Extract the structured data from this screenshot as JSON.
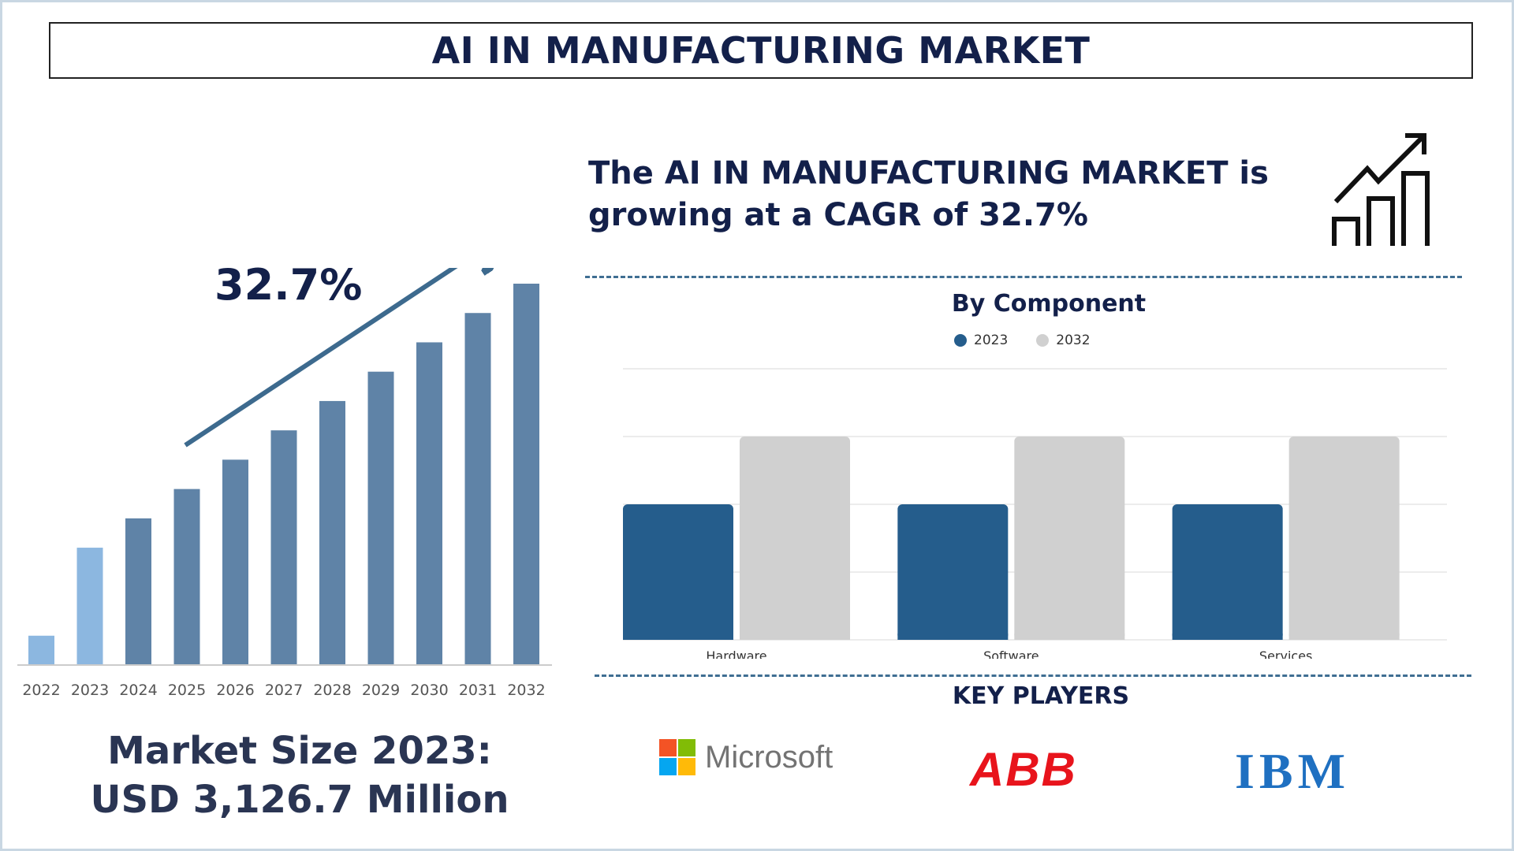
{
  "header": {
    "title": "AI IN MANUFACTURING MARKET"
  },
  "cagr_label": "32.7%",
  "headline": {
    "line1": "The AI IN MANUFACTURING MARKET is",
    "line2": "growing at a CAGR of 32.7%"
  },
  "market_size": {
    "line1": "Market Size 2023:",
    "line2": "USD 3,126.7 Million"
  },
  "component_title": "By Component",
  "key_players_title": "KEY PLAYERS",
  "key_players": [
    "Microsoft",
    "ABB",
    "IBM"
  ],
  "icons": {
    "growth": "bar-chart-growth-icon"
  },
  "colors": {
    "bar_dark": "#5f83a7",
    "bar_light": "#8cb7e0",
    "arrow": "#3d6a8e",
    "series_2023": "#255d8c",
    "series_2032": "#d0d0d0",
    "abb_red": "#e8141c",
    "ibm_blue": "#1f70c1"
  },
  "chart_data": [
    {
      "type": "bar",
      "categories": [
        "2022",
        "2023",
        "2024",
        "2025",
        "2026",
        "2027",
        "2028",
        "2029",
        "2030",
        "2031",
        "2032"
      ],
      "values": [
        1,
        4,
        5,
        6,
        7,
        8,
        9,
        10,
        11,
        12,
        13
      ],
      "highlight": [
        "2022",
        "2023"
      ],
      "trend_annotation": "32.7%"
    },
    {
      "type": "bar",
      "title": "By Component",
      "categories": [
        "Hardware",
        "Software",
        "Services"
      ],
      "series": [
        {
          "name": "2023",
          "values": [
            2,
            2,
            2
          ]
        },
        {
          "name": "2032",
          "values": [
            3,
            3,
            3
          ]
        }
      ],
      "ylim": [
        0,
        4
      ],
      "grid": true,
      "legend": "top-center"
    }
  ]
}
